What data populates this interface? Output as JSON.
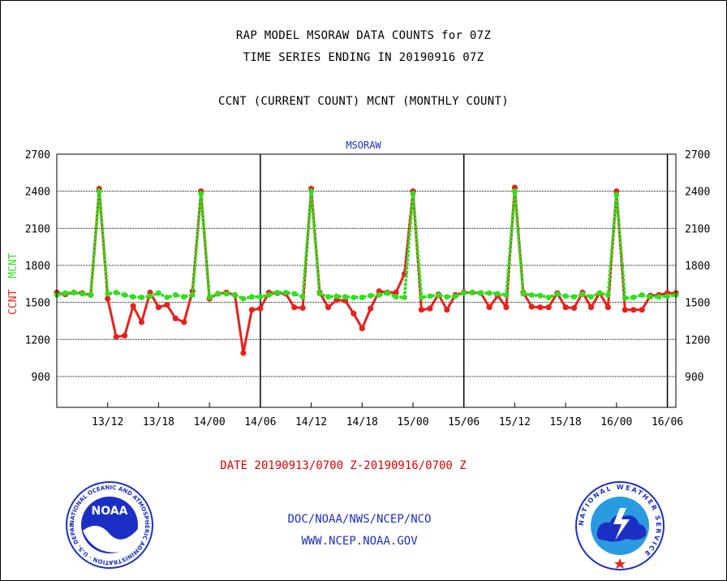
{
  "header": {
    "line1": "RAP MODEL MSORAW DATA COUNTS for 07Z",
    "line2": "TIME SERIES ENDING IN 20190916 07Z",
    "line3": "CCNT (CURRENT COUNT) MCNT (MONTHLY COUNT)"
  },
  "footer": {
    "date_range": "DATE 20190913/0700 Z-20190916/0700 Z",
    "org": "DOC/NOAA/NWS/NCEP/NCO",
    "url": "WWW.NCEP.NOAA.GOV"
  },
  "logos": {
    "noaa": {
      "center_text": "NOAA",
      "ring_text": "NATIONAL OCEANIC AND ATMOSPHERIC ADMINISTRATION · U.S. DEPARTMENT OF COMMERCE ·"
    },
    "nws": {
      "ring_text": "NATIONAL WEATHER SERVICE"
    }
  },
  "colors": {
    "ccnt": "#e8211b",
    "mcnt": "#2ee01c",
    "axis": "#000000",
    "label_blue": "#1c2fc4"
  },
  "chart_data": {
    "type": "line",
    "title": "MSORAW",
    "ylabel_parts": [
      "CCNT",
      "MCNT"
    ],
    "ylim": [
      650,
      2700
    ],
    "yticks": [
      900,
      1200,
      1500,
      1800,
      2100,
      2400,
      2700
    ],
    "xlim": [
      0,
      73
    ],
    "xticks": [
      {
        "x": 6,
        "label": "13/12"
      },
      {
        "x": 12,
        "label": "13/18"
      },
      {
        "x": 18,
        "label": "14/00"
      },
      {
        "x": 24,
        "label": "14/06"
      },
      {
        "x": 30,
        "label": "14/12"
      },
      {
        "x": 36,
        "label": "14/18"
      },
      {
        "x": 42,
        "label": "15/00"
      },
      {
        "x": 48,
        "label": "15/06"
      },
      {
        "x": 54,
        "label": "15/12"
      },
      {
        "x": 60,
        "label": "15/18"
      },
      {
        "x": 66,
        "label": "16/00"
      },
      {
        "x": 72,
        "label": "16/06"
      }
    ],
    "day_lines": [
      24,
      48,
      72
    ],
    "grid": "horizontal",
    "series": [
      {
        "name": "CCNT",
        "color": "#e8211b",
        "style": "solid",
        "values": [
          1580,
          1565,
          1580,
          1575,
          1560,
          2420,
          1530,
          1220,
          1230,
          1470,
          1340,
          1580,
          1460,
          1480,
          1370,
          1340,
          1590,
          2400,
          1530,
          1570,
          1580,
          1560,
          1090,
          1440,
          1450,
          1580,
          1575,
          1570,
          1460,
          1455,
          2420,
          1580,
          1460,
          1520,
          1515,
          1410,
          1290,
          1450,
          1590,
          1580,
          1580,
          1730,
          2400,
          1440,
          1450,
          1565,
          1440,
          1560,
          1580,
          1580,
          1575,
          1460,
          1555,
          1460,
          2430,
          1580,
          1465,
          1460,
          1460,
          1575,
          1460,
          1455,
          1580,
          1460,
          1575,
          1460,
          2400,
          1440,
          1440,
          1440,
          1555,
          1560,
          1575,
          1575
        ]
      },
      {
        "name": "MCNT",
        "color": "#2ee01c",
        "style": "dotted",
        "values": [
          1560,
          1575,
          1580,
          1570,
          1560,
          2400,
          1570,
          1580,
          1560,
          1545,
          1540,
          1550,
          1575,
          1540,
          1560,
          1545,
          1560,
          2380,
          1540,
          1570,
          1570,
          1560,
          1530,
          1545,
          1545,
          1560,
          1580,
          1580,
          1570,
          1545,
          2400,
          1570,
          1545,
          1550,
          1545,
          1540,
          1540,
          1555,
          1560,
          1575,
          1545,
          1540,
          2380,
          1540,
          1550,
          1560,
          1545,
          1550,
          1575,
          1580,
          1575,
          1575,
          1570,
          1560,
          2400,
          1570,
          1560,
          1555,
          1540,
          1570,
          1550,
          1545,
          1565,
          1545,
          1575,
          1560,
          2370,
          1535,
          1540,
          1560,
          1545,
          1545,
          1550,
          1560
        ]
      }
    ]
  }
}
